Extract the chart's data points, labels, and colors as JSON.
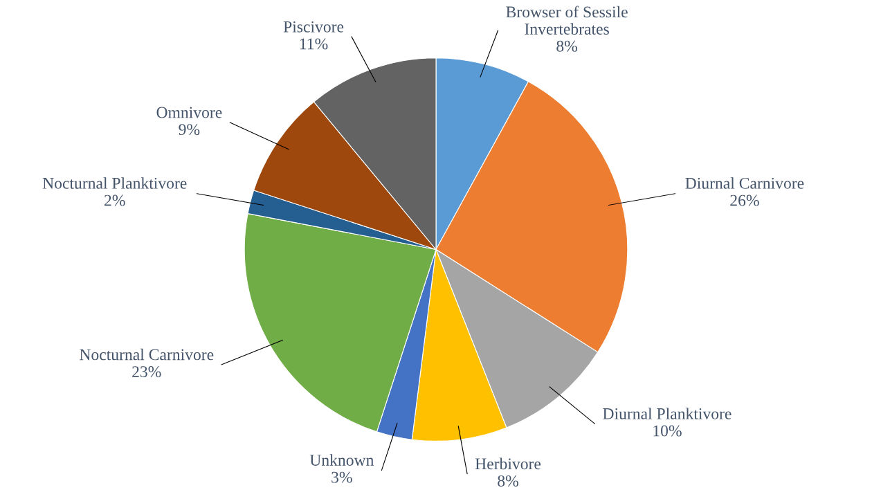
{
  "chart_data": {
    "type": "pie",
    "categories": [
      "Browser of Sessile\nInvertebrates",
      "Diurnal Carnivore",
      "Diurnal Planktivore",
      "Herbivore",
      "Unknown",
      "Nocturnal Carnivore",
      "Nocturnal Planktivore",
      "Omnivore",
      "Piscivore"
    ],
    "values": [
      8,
      26,
      10,
      8,
      3,
      23,
      2,
      9,
      11
    ],
    "value_labels": [
      "8%",
      "26%",
      "10%",
      "8%",
      "3%",
      "23%",
      "2%",
      "9%",
      "11%"
    ],
    "colors": [
      "#5b9bd5",
      "#ed7d31",
      "#a5a5a5",
      "#ffc000",
      "#4472c4",
      "#70ad47",
      "#255e91",
      "#9e480e",
      "#636363"
    ],
    "legend": false
  }
}
